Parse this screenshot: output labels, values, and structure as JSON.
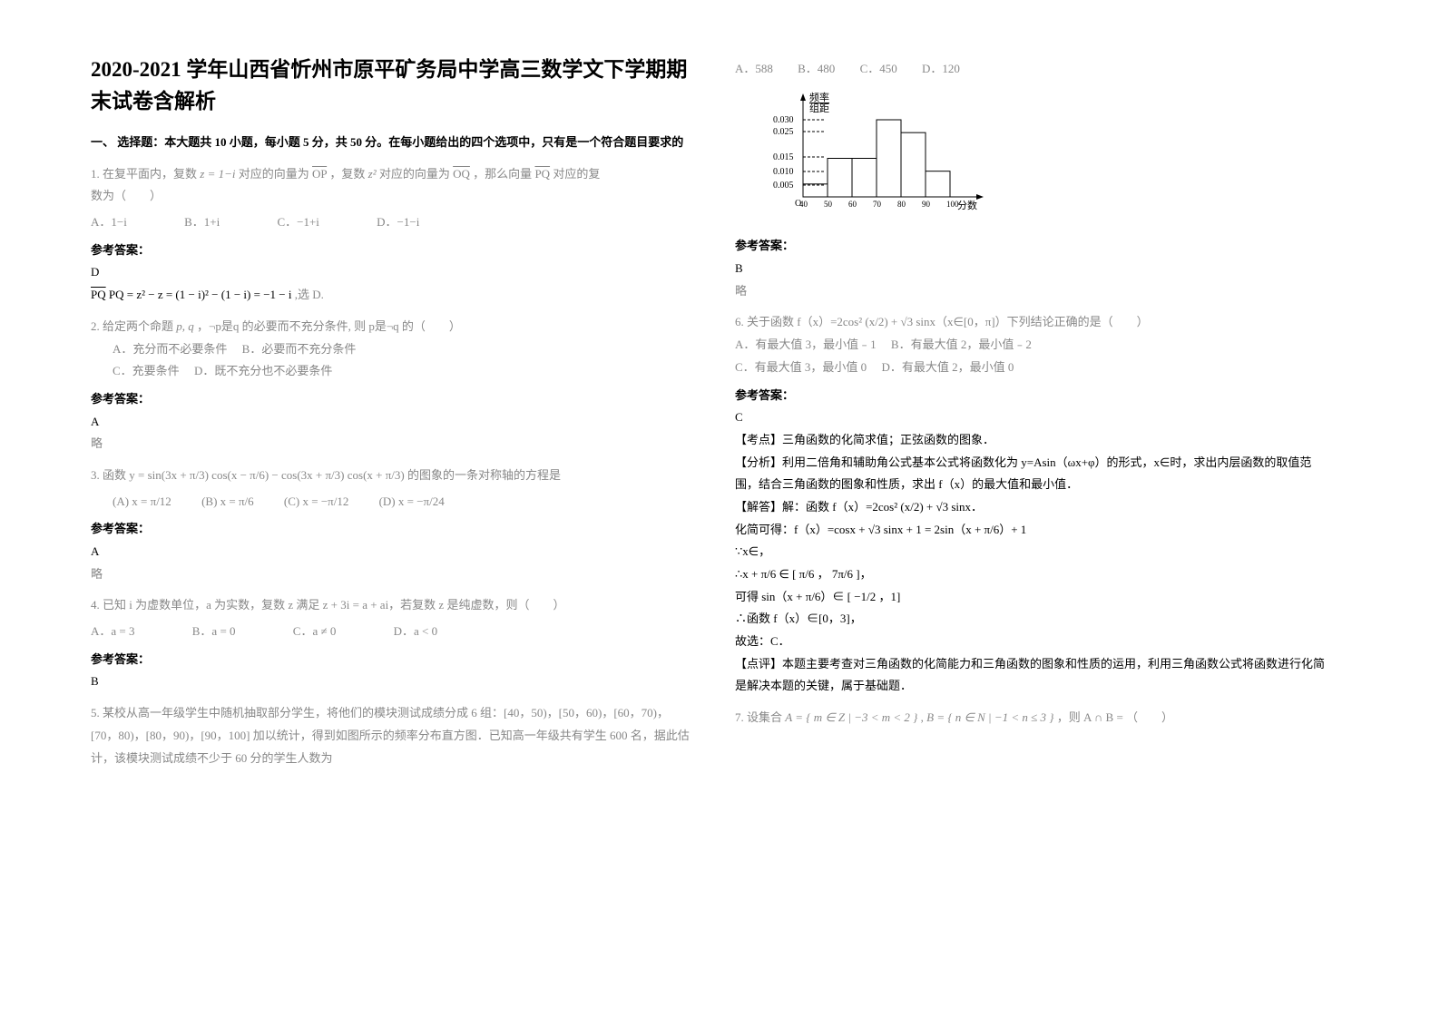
{
  "title": "2020-2021 学年山西省忻州市原平矿务局中学高三数学文下学期期末试卷含解析",
  "section1_head": "一、 选择题：本大题共 10 小题，每小题 5 分，共 50 分。在每小题给出的四个选项中，只有是一个符合题目要求的",
  "ans_label": "参考答案：",
  "q1": {
    "stem_a": "1. 在复平面内，复数",
    "stem_b": " 对应的向量为",
    "stem_c": "，复数",
    "stem_d": " 对应的向量为",
    "stem_e": "，那么向量",
    "stem_f": " 对应的复",
    "stem_g": "数为（　　）",
    "z1": "z = 1−i",
    "z2": "z²",
    "OP": "OP",
    "OQ": "OQ",
    "PQ": "PQ",
    "A": "A．1−i",
    "B": "B．1+i",
    "C": "C．−1+i",
    "D": "D．−1−i",
    "ans": "D",
    "expl": "PQ = z² − z = (1 − i)² − (1 − i) = −1 − i",
    "expl_tail": " ,选 D."
  },
  "q2": {
    "stem_a": "2. 给定两个命题 ",
    "pq": "p, q",
    "stem_b": "，¬p是q 的必要而不充分条件, 则 p是¬q 的（　　）",
    "optA": "A．充分而不必要条件",
    "optB": "B．必要而不充分条件",
    "optC": "C．充要条件",
    "optD": "D．既不充分也不必要条件",
    "ans": "A",
    "note": "略"
  },
  "q3": {
    "stem": "3. 函数 y = sin(3x + π/3) cos(x − π/6) − cos(3x + π/3) cos(x + π/3) 的图象的一条对称轴的方程是",
    "optA": "(A) x = π/12",
    "optB": "(B) x = π/6",
    "optC": "(C) x = −π/12",
    "optD": "(D) x = −π/24",
    "ans": "A",
    "note": "略"
  },
  "q4": {
    "stem": "4. 已知 i 为虚数单位，a 为实数，复数 z 满足 z + 3i = a + ai，若复数 z 是纯虚数，则（　　）",
    "A": "A．a = 3",
    "B": "B．a = 0",
    "C": "C．a ≠ 0",
    "D": "D．a < 0",
    "ans": "B"
  },
  "q5": {
    "stem": "5. 某校从高一年级学生中随机抽取部分学生，将他们的模块测试成绩分成 6 组：[40，50)，[50，60)，[60，70)，[70，80)，[80，90)，[90，100] 加以统计，得到如图所示的频率分布直方图．已知高一年级共有学生 600 名，据此估计，该模块测试成绩不少于 60 分的学生人数为",
    "A": "A．588",
    "B": "B．480",
    "C": "C．450",
    "D": "D．120",
    "ans": "B",
    "note": "略"
  },
  "histogram": {
    "ylabel_top": "频率",
    "ylabel_bot": "组距",
    "yticks": [
      "0.030",
      "0.025",
      "0.015",
      "0.010",
      "0.005"
    ],
    "xticks": [
      "40",
      "50",
      "60",
      "70",
      "80",
      "90",
      "100"
    ],
    "xlabel": "分数",
    "origin": "O",
    "bars_y": [
      0.005,
      0.015,
      0.015,
      0.03,
      0.025,
      0.01
    ]
  },
  "q6": {
    "stem": "6. 关于函数 f（x）=2cos² (x/2) + √3 sinx（x∈[0，π]）下列结论正确的是（　　）",
    "A": "A．有最大值 3，最小值﹣1",
    "B": "B．有最大值 2，最小值﹣2",
    "C": "C．有最大值 3，最小值 0",
    "D": "D．有最大值 2，最小值 0",
    "ans": "C",
    "kd": "【考点】三角函数的化简求值；正弦函数的图象．",
    "fx": "【分析】利用二倍角和辅助角公式基本公式将函数化为 y=Asin（ωx+φ）的形式，x∈时，求出内层函数的取值范围，结合三角函数的图象和性质，求出 f（x）的最大值和最小值．",
    "s1": "【解答】解：函数 f（x）=2cos² (x/2) + √3 sinx．",
    "s2": "化简可得：f（x）=cosx + √3 sinx + 1 = 2sin（x + π/6）+ 1",
    "s3": "∵x∈，",
    "s4": "∴x + π/6 ∈ [ π/6 ， 7π/6 ]，",
    "s5": "可得 sin（x + π/6）∈ [ −1/2 ，1]",
    "s6": "∴函数 f（x）∈[0，3]，",
    "s7": "故选：C．",
    "dp": "【点评】本题主要考查对三角函数的化简能力和三角函数的图象和性质的运用，利用三角函数公式将函数进行化简是解决本题的关键，属于基础题．"
  },
  "q7": {
    "stem_a": "7. 设集合 ",
    "A_set": "A = { m ∈ Z | −3 < m < 2 }",
    "B_set": "B = { n ∈ N | −1 < n ≤ 3 }",
    "stem_b": "，则 A ∩ B = （　　）"
  }
}
